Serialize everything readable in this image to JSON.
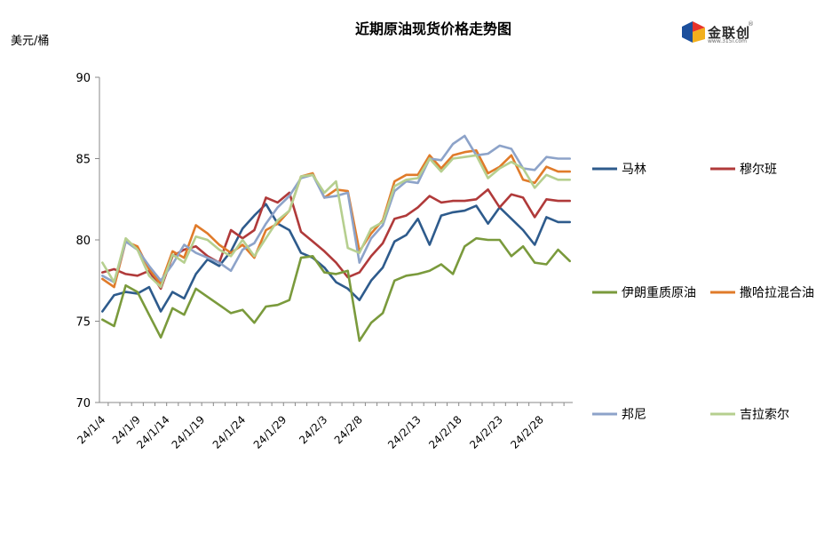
{
  "chart_data": {
    "type": "line",
    "title": "近期原油现货价格走势图",
    "ylabel": "美元/桶",
    "xlabel": "",
    "ylim": [
      70,
      90
    ],
    "yticks": [
      70,
      75,
      80,
      85,
      90
    ],
    "grid": false,
    "legend_position": "right",
    "x": [
      "24/1/4",
      "24/1/5",
      "24/1/8",
      "24/1/9",
      "24/1/10",
      "24/1/11",
      "24/1/12",
      "24/1/15",
      "24/1/16",
      "24/1/17",
      "24/1/18",
      "24/1/19",
      "24/1/22",
      "24/1/23",
      "24/1/24",
      "24/1/25",
      "24/1/26",
      "24/1/29",
      "24/1/30",
      "24/1/31",
      "24/2/1",
      "24/2/2",
      "24/2/5",
      "24/2/6",
      "24/2/7",
      "24/2/8",
      "24/2/9",
      "24/2/12",
      "24/2/13",
      "24/2/14",
      "24/2/15",
      "24/2/16",
      "24/2/19",
      "24/2/20",
      "24/2/21",
      "24/2/22",
      "24/2/23",
      "24/2/26",
      "24/2/27",
      "24/2/28",
      "24/2/29"
    ],
    "xticks": [
      "24/1/4",
      "24/1/9",
      "24/1/14",
      "24/1/19",
      "24/1/24",
      "24/1/29",
      "24/2/3",
      "24/2/8",
      "24/2/13",
      "24/2/18",
      "24/2/23",
      "24/2/28"
    ],
    "xtick_positions": [
      0,
      3,
      5.5,
      8.5,
      12,
      15.5,
      19,
      22,
      27,
      30.5,
      34,
      37.5
    ],
    "series": [
      {
        "name": "马林",
        "color": "#2e5b8c",
        "values": [
          75.6,
          76.6,
          76.8,
          76.7,
          77.1,
          75.6,
          76.8,
          76.4,
          77.9,
          78.8,
          78.4,
          79.3,
          80.7,
          81.5,
          82.2,
          81.0,
          80.6,
          79.2,
          78.9,
          78.3,
          77.4,
          77.0,
          76.3,
          77.5,
          78.3,
          79.9,
          80.3,
          81.3,
          79.7,
          81.5,
          81.7,
          81.8,
          82.1,
          81.0,
          82.0,
          81.3,
          80.6,
          79.7,
          81.4,
          81.1,
          81.1
        ]
      },
      {
        "name": "穆尔班",
        "color": "#b03a3a",
        "values": [
          78.0,
          78.2,
          77.9,
          77.8,
          78.1,
          77.0,
          79.0,
          79.4,
          79.6,
          79.0,
          78.6,
          80.6,
          80.1,
          80.6,
          82.6,
          82.3,
          82.9,
          80.5,
          79.9,
          79.3,
          78.6,
          77.7,
          78.0,
          79.0,
          79.8,
          81.3,
          81.5,
          82.0,
          82.7,
          82.3,
          82.4,
          82.4,
          82.5,
          83.1,
          82.0,
          82.8,
          82.6,
          81.4,
          82.5,
          82.4,
          82.4
        ]
      },
      {
        "name": "伊朗重质原油",
        "color": "#7a9a3c",
        "values": [
          75.1,
          74.7,
          77.2,
          76.8,
          75.4,
          74.0,
          75.8,
          75.4,
          77.0,
          76.5,
          76.0,
          75.5,
          75.7,
          74.9,
          75.9,
          76.0,
          76.3,
          78.9,
          79.0,
          78.0,
          77.9,
          78.1,
          73.8,
          74.9,
          75.5,
          77.5,
          77.8,
          77.9,
          78.1,
          78.5,
          77.9,
          79.6,
          80.1,
          80.0,
          80.0,
          79.0,
          79.6,
          78.6,
          78.5,
          79.4,
          78.7
        ]
      },
      {
        "name": "撒哈拉混合油",
        "color": "#e07b2a",
        "values": [
          77.6,
          77.1,
          79.9,
          79.6,
          78.2,
          77.3,
          79.3,
          78.9,
          80.9,
          80.4,
          79.7,
          79.2,
          79.7,
          78.9,
          80.6,
          81.0,
          81.8,
          83.9,
          84.1,
          82.6,
          83.1,
          83.0,
          79.3,
          80.4,
          81.2,
          83.6,
          84.0,
          84.0,
          85.2,
          84.4,
          85.2,
          85.4,
          85.5,
          84.1,
          84.5,
          85.2,
          83.7,
          83.5,
          84.5,
          84.2,
          84.2
        ]
      },
      {
        "name": "邦尼",
        "color": "#8da3c9",
        "values": [
          77.8,
          77.4,
          79.9,
          79.4,
          78.4,
          77.5,
          78.5,
          79.7,
          79.2,
          78.9,
          78.6,
          78.1,
          79.4,
          79.8,
          81.0,
          82.0,
          82.7,
          83.8,
          84.0,
          82.6,
          82.7,
          82.9,
          78.6,
          80.1,
          80.9,
          83.0,
          83.6,
          83.5,
          85.0,
          84.9,
          85.9,
          86.4,
          85.2,
          85.3,
          85.8,
          85.6,
          84.4,
          84.3,
          85.1,
          85.0,
          85.0
        ]
      },
      {
        "name": "吉拉索尔",
        "color": "#b6cf8f",
        "values": [
          78.6,
          77.4,
          80.1,
          79.4,
          77.8,
          77.1,
          79.1,
          78.6,
          80.2,
          80.0,
          79.4,
          79.0,
          80.0,
          79.0,
          80.1,
          81.2,
          81.8,
          83.9,
          84.0,
          82.9,
          83.6,
          79.5,
          79.2,
          80.7,
          81.1,
          83.3,
          83.7,
          83.8,
          85.0,
          84.2,
          85.0,
          85.1,
          85.2,
          83.8,
          84.4,
          84.8,
          84.4,
          83.2,
          84.0,
          83.7,
          83.7
        ]
      }
    ]
  },
  "logo": {
    "text": "金联创",
    "sub": "www.315i.com",
    "reg": "®"
  }
}
